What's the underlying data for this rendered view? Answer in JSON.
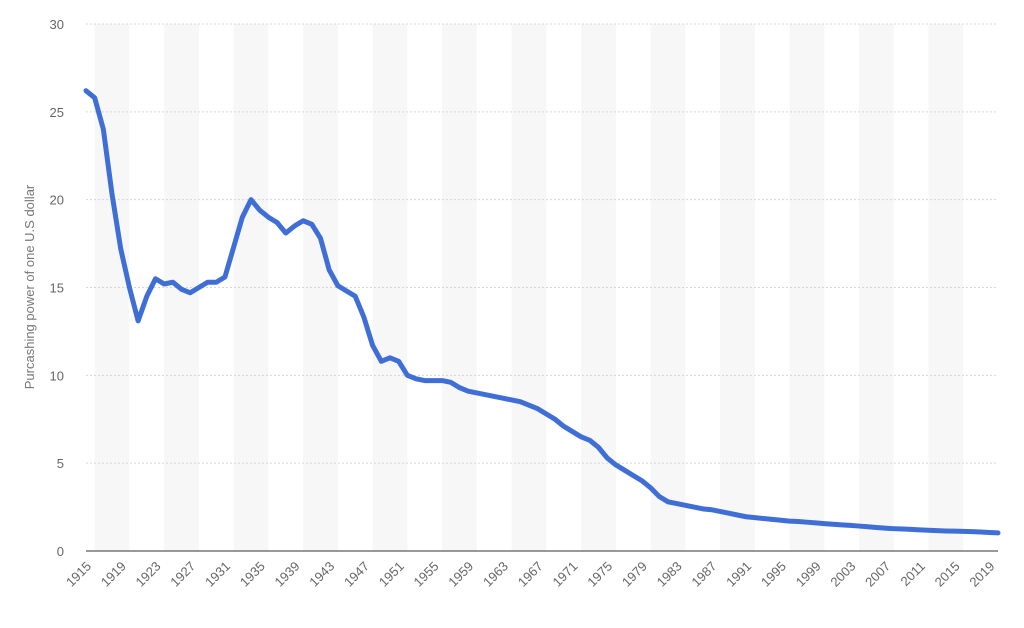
{
  "chart_data": {
    "type": "line",
    "title": "",
    "xlabel": "",
    "ylabel": "Purcashing power of one U.S dollar",
    "ylim": [
      0,
      30
    ],
    "xlim": [
      1915,
      2020
    ],
    "y_ticks": [
      0,
      5,
      10,
      15,
      20,
      25,
      30
    ],
    "x_tick_labels": [
      "1915",
      "1919",
      "1923",
      "1927",
      "1931",
      "1935",
      "1939",
      "1943",
      "1947",
      "1951",
      "1955",
      "1959",
      "1963",
      "1967",
      "1971",
      "1975",
      "1979",
      "1983",
      "1987",
      "1991",
      "1995",
      "1999",
      "2003",
      "2007",
      "2011",
      "2015",
      "2019"
    ],
    "grid": true,
    "legend": "none",
    "colors": {
      "line": "#3f6fd6",
      "grid": "#d6d6d6",
      "band": "#f7f7f7",
      "axis": "#333333"
    },
    "series": [
      {
        "x": [
          1915,
          1916,
          1917,
          1918,
          1919,
          1920,
          1921,
          1922,
          1923,
          1924,
          1925,
          1926,
          1927,
          1928,
          1929,
          1930,
          1931,
          1932,
          1933,
          1934,
          1935,
          1936,
          1937,
          1938,
          1939,
          1940,
          1941,
          1942,
          1943,
          1944,
          1945,
          1946,
          1947,
          1948,
          1949,
          1950,
          1951,
          1952,
          1953,
          1954,
          1955,
          1956,
          1957,
          1958,
          1959,
          1960,
          1961,
          1962,
          1963,
          1964,
          1965,
          1966,
          1967,
          1968,
          1969,
          1970,
          1971,
          1972,
          1973,
          1974,
          1975,
          1976,
          1977,
          1978,
          1979,
          1980,
          1981,
          1982,
          1983,
          1984,
          1985,
          1986,
          1987,
          1988,
          1989,
          1990,
          1991,
          1992,
          1993,
          1994,
          1995,
          1996,
          1997,
          1998,
          1999,
          2000,
          2001,
          2002,
          2003,
          2004,
          2005,
          2006,
          2007,
          2008,
          2009,
          2010,
          2011,
          2012,
          2013,
          2014,
          2015,
          2016,
          2017,
          2018,
          2019,
          2020
        ],
        "values": [
          26.2,
          25.8,
          24.0,
          20.3,
          17.2,
          15.0,
          13.1,
          14.5,
          15.5,
          15.2,
          15.3,
          14.9,
          14.7,
          15.0,
          15.3,
          15.3,
          15.6,
          17.3,
          19.0,
          20.0,
          19.4,
          19.0,
          18.7,
          18.1,
          18.5,
          18.8,
          18.6,
          17.8,
          16.0,
          15.1,
          14.8,
          14.5,
          13.3,
          11.7,
          10.8,
          11.0,
          10.8,
          10.0,
          9.8,
          9.7,
          9.7,
          9.7,
          9.6,
          9.3,
          9.1,
          9.0,
          8.9,
          8.8,
          8.7,
          8.6,
          8.5,
          8.3,
          8.1,
          7.8,
          7.5,
          7.1,
          6.8,
          6.5,
          6.3,
          5.9,
          5.3,
          4.9,
          4.6,
          4.3,
          4.0,
          3.6,
          3.1,
          2.8,
          2.7,
          2.6,
          2.5,
          2.4,
          2.35,
          2.25,
          2.15,
          2.05,
          1.95,
          1.9,
          1.85,
          1.8,
          1.75,
          1.7,
          1.68,
          1.64,
          1.6,
          1.56,
          1.52,
          1.49,
          1.46,
          1.42,
          1.38,
          1.34,
          1.3,
          1.27,
          1.25,
          1.23,
          1.2,
          1.18,
          1.16,
          1.14,
          1.13,
          1.12,
          1.1,
          1.08,
          1.05,
          1.03
        ]
      }
    ]
  }
}
